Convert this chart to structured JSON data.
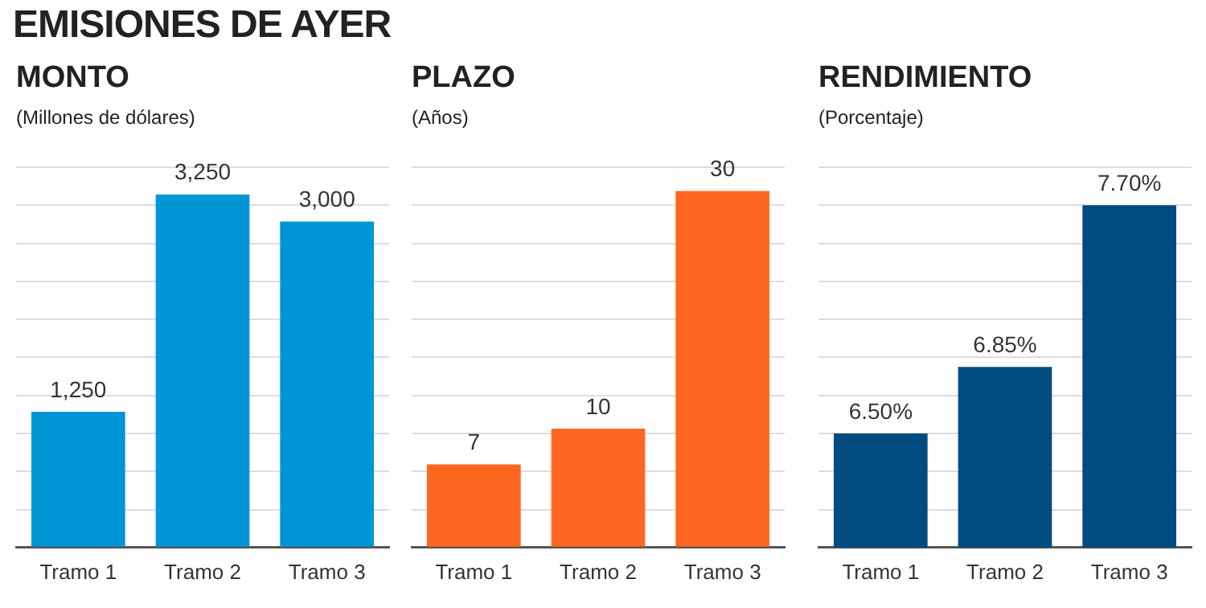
{
  "chart_data": [
    {
      "type": "bar",
      "title": "MONTO",
      "ylabel": "(Millones de dólares)",
      "annotations": [
        "EMISIONES DE AYER"
      ],
      "categories": [
        "Tramo 1",
        "Tramo 2",
        "Tramo 3"
      ],
      "values": [
        1250,
        3250,
        3000
      ],
      "value_labels": [
        "1,250",
        "3,250",
        "3,000"
      ],
      "color": "#0096d6",
      "ylim": [
        0,
        3500
      ],
      "yticks": [
        {
          "value": 0,
          "label": null
        },
        {
          "value": 350,
          "label": null
        },
        {
          "value": 700,
          "label": null
        },
        {
          "value": 1050,
          "label": null
        },
        {
          "value": 1400,
          "label": null
        },
        {
          "value": 1750,
          "label": null
        },
        {
          "value": 2100,
          "label": null
        },
        {
          "value": 2450,
          "label": null
        },
        {
          "value": 2800,
          "label": null
        },
        {
          "value": 3150,
          "label": null
        },
        {
          "value": 3500,
          "label": null
        }
      ],
      "grid": "y",
      "tick_labels": "x"
    },
    {
      "type": "bar",
      "title": "PLAZO",
      "ylabel": "(Años)",
      "categories": [
        "Tramo 1",
        "Tramo 2",
        "Tramo 3"
      ],
      "values": [
        7,
        10,
        30
      ],
      "value_labels": [
        "7",
        "10",
        "30"
      ],
      "color": "#ff6620",
      "ylim": [
        0,
        32
      ],
      "yticks": [
        {
          "value": 0,
          "label": null
        },
        {
          "value": 3.2,
          "label": null
        },
        {
          "value": 6.4,
          "label": null
        },
        {
          "value": 9.6,
          "label": null
        },
        {
          "value": 12.8,
          "label": null
        },
        {
          "value": 16,
          "label": null
        },
        {
          "value": 19.2,
          "label": null
        },
        {
          "value": 22.4,
          "label": null
        },
        {
          "value": 25.6,
          "label": null
        },
        {
          "value": 28.8,
          "label": null
        },
        {
          "value": 32,
          "label": null
        }
      ],
      "grid": "y",
      "tick_labels": "x"
    },
    {
      "type": "bar",
      "title": "RENDIMIENTO",
      "ylabel": "(Porcentaje)",
      "categories": [
        "Tramo 1",
        "Tramo 2",
        "Tramo 3"
      ],
      "values": [
        6.5,
        6.85,
        7.7
      ],
      "value_labels": [
        "6.50%",
        "6.85%",
        "7.70%"
      ],
      "color": "#004b7f",
      "ylim": [
        5.9,
        7.9
      ],
      "yticks": [
        {
          "value": 5.9,
          "label": null
        },
        {
          "value": 6.1,
          "label": null
        },
        {
          "value": 6.3,
          "label": null
        },
        {
          "value": 6.5,
          "label": null
        },
        {
          "value": 6.7,
          "label": null
        },
        {
          "value": 6.9,
          "label": null
        },
        {
          "value": 7.1,
          "label": null
        },
        {
          "value": 7.3,
          "label": null
        },
        {
          "value": 7.5,
          "label": null
        },
        {
          "value": 7.7,
          "label": null
        },
        {
          "value": 7.9,
          "label": null
        }
      ],
      "grid": "y",
      "tick_labels": "x"
    }
  ]
}
